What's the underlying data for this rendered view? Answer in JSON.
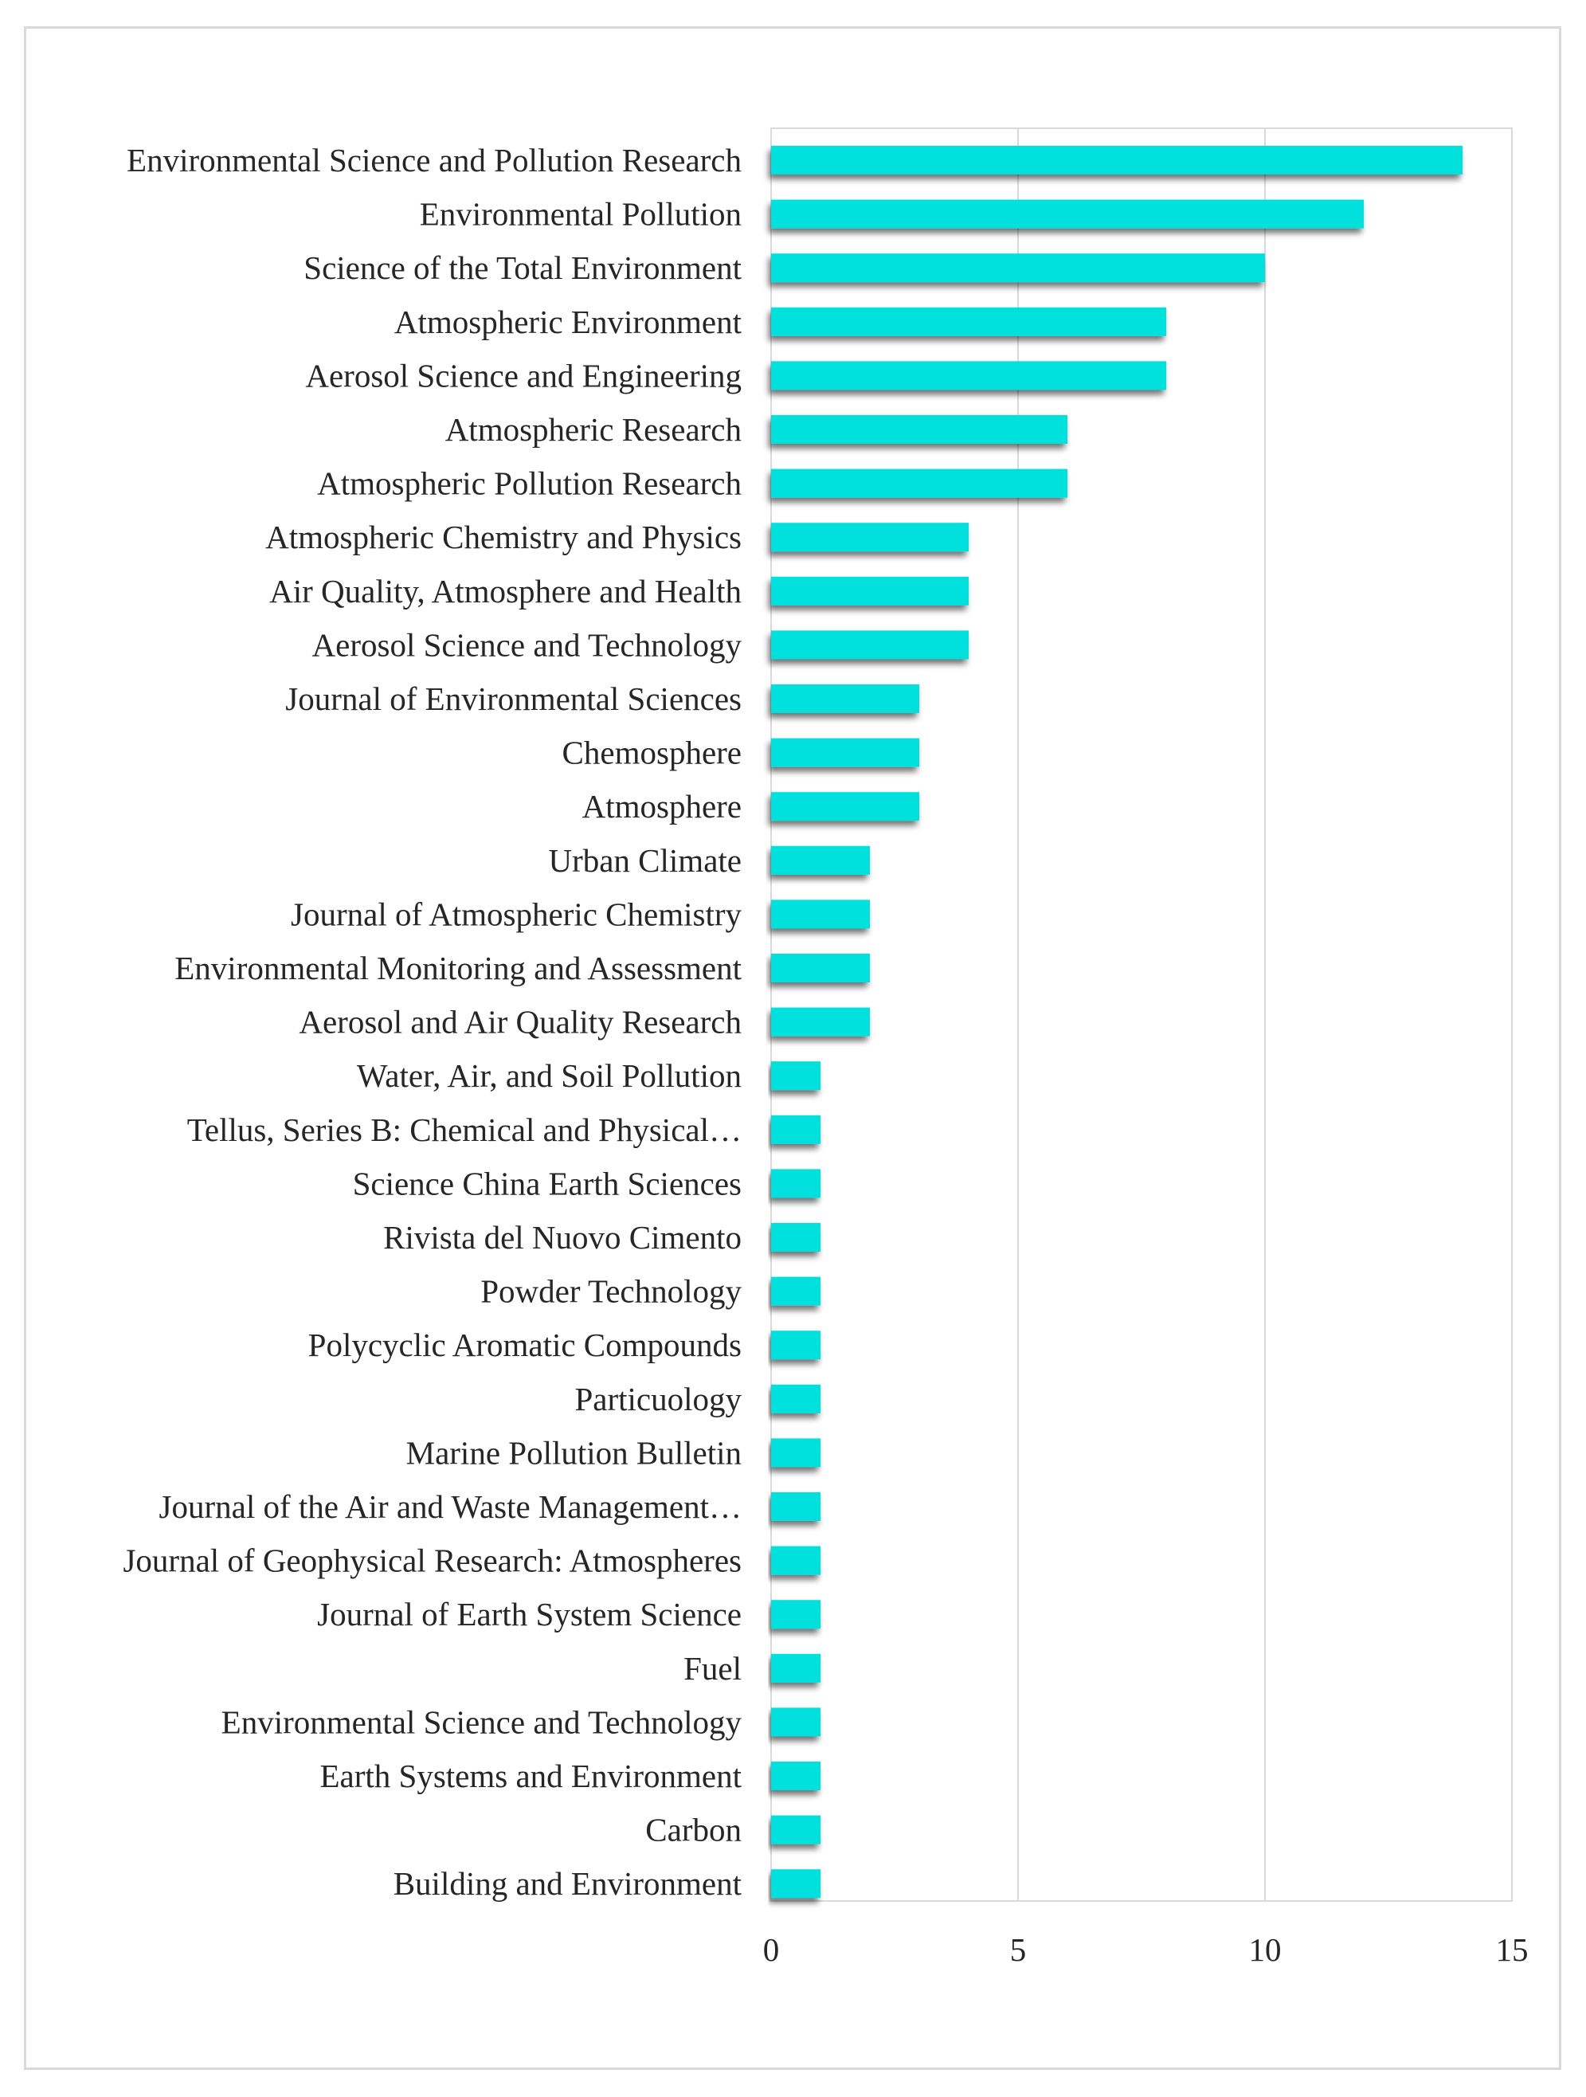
{
  "chart_data": {
    "type": "bar",
    "orientation": "horizontal",
    "title": "",
    "xlabel": "",
    "ylabel": "",
    "xlim": [
      0,
      15
    ],
    "xticks": [
      0,
      5,
      10,
      15
    ],
    "grid": true,
    "legend": "none",
    "bar_color": "#00e0dc",
    "categories": [
      "Environmental Science and Pollution Research",
      "Environmental Pollution",
      "Science of the Total Environment",
      "Atmospheric Environment",
      "Aerosol Science and Engineering",
      "Atmospheric Research",
      "Atmospheric Pollution Research",
      "Atmospheric Chemistry and Physics",
      "Air Quality, Atmosphere and Health",
      "Aerosol Science and Technology",
      "Journal of Environmental Sciences",
      "Chemosphere",
      "Atmosphere",
      "Urban Climate",
      "Journal of Atmospheric Chemistry",
      "Environmental Monitoring and Assessment",
      "Aerosol and Air Quality Research",
      "Water, Air, and Soil Pollution",
      "Tellus, Series B: Chemical and Physical…",
      "Science China Earth Sciences",
      "Rivista del Nuovo Cimento",
      "Powder Technology",
      "Polycyclic Aromatic Compounds",
      "Particuology",
      "Marine Pollution Bulletin",
      "Journal of the Air and Waste Management…",
      "Journal of Geophysical Research: Atmospheres",
      "Journal of Earth System Science",
      "Fuel",
      "Environmental Science and Technology",
      "Earth Systems and Environment",
      "Carbon",
      "Building and Environment"
    ],
    "values": [
      14,
      12,
      10,
      8,
      8,
      6,
      6,
      4,
      4,
      4,
      3,
      3,
      3,
      2,
      2,
      2,
      2,
      1,
      1,
      1,
      1,
      1,
      1,
      1,
      1,
      1,
      1,
      1,
      1,
      1,
      1,
      1,
      1
    ]
  }
}
